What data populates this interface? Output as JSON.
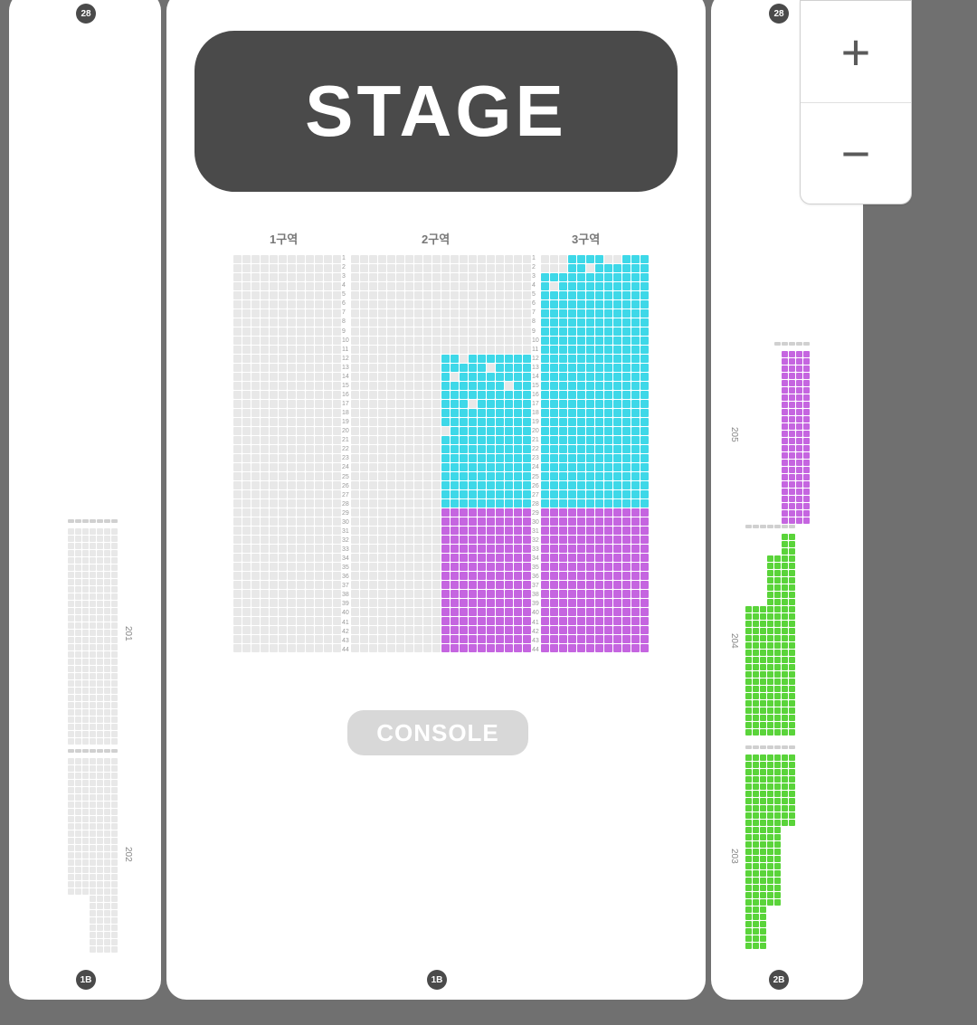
{
  "background_color": "#707070",
  "panel_color": "#ffffff",
  "stage": {
    "label": "STAGE",
    "bg": "#4a4a4a",
    "text_color": "#ffffff"
  },
  "console": {
    "label": "CONSOLE",
    "bg": "#d8d8d8",
    "text_color": "#ffffff"
  },
  "floor_badges": {
    "top_left": "28",
    "top_right": "28",
    "bottom_left": "1B",
    "bottom_center": "1B",
    "bottom_right": "2B"
  },
  "center_sections": {
    "headers": {
      "s1": "1구역",
      "s2": "2구역",
      "s3": "3구역"
    },
    "seat_size": 9,
    "gap": 1,
    "colors": {
      "empty": "#e8e8e8",
      "cyan": "#3ed8e8",
      "purple": "#c565e0",
      "row_label": "#999999"
    },
    "section1": {
      "cols": 12,
      "rows": 44,
      "fill": "empty"
    },
    "section2": {
      "cols": 20,
      "rows": 44,
      "cyan_start_row": 11,
      "cyan_start_col": 10,
      "purple_start_row": 28
    },
    "section3": {
      "cols": 12,
      "rows": 44,
      "cyan_start_row": 0,
      "purple_start_row": 28
    }
  },
  "left_side": {
    "seat_size": 7,
    "gap": 1,
    "color_empty": "#e8e8e8",
    "color_header": "#d0d0d0",
    "block201": {
      "label": "201",
      "cols": 7,
      "rows": 30
    },
    "block202": {
      "label": "202",
      "cols": 7,
      "rows": 27
    }
  },
  "right_side": {
    "seat_size": 7,
    "gap": 1,
    "color_purple": "#c565e0",
    "color_green": "#5ad43a",
    "color_header": "#d0d0d0",
    "block205": {
      "label": "205",
      "cols": 5,
      "rows": 24
    },
    "block204": {
      "label": "204",
      "cols": 7,
      "rows": 28
    },
    "block203": {
      "label": "203",
      "cols": 7,
      "rows": 27
    }
  },
  "zoom": {
    "in_label": "+",
    "out_label": "−"
  }
}
